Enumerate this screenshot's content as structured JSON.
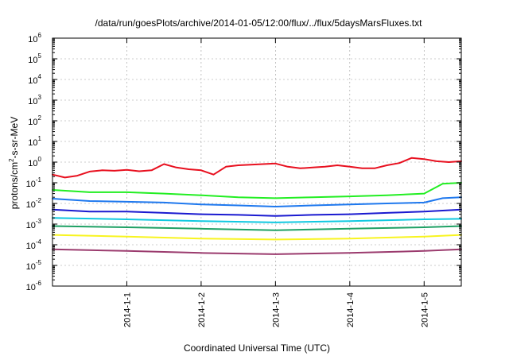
{
  "chart_data": {
    "type": "line",
    "title": "/data/run/goesPlots/archive/2014-01-05/12:00/flux/../flux/5daysMarsFluxes.txt",
    "xlabel": "Coordinated Universal Time (UTC)",
    "ylabel_prefix": "protons/cm",
    "ylabel_exp": "2",
    "ylabel_suffix": "-s-sr-MeV",
    "x_scale": "date",
    "xlim": [
      "2013-12-31T00:00",
      "2014-01-05T12:00"
    ],
    "x_ticks": [
      "2014-1-1",
      "2014-1-2",
      "2014-1-3",
      "2014-1-4",
      "2014-1-5"
    ],
    "y_scale": "log",
    "ylim": [
      1e-06,
      1000000.0
    ],
    "y_tick_base": "10",
    "y_tick_exponents": [
      "-6",
      "-5",
      "-4",
      "-3",
      "-2",
      "-1",
      "0",
      "1",
      "2",
      "3",
      "4",
      "5",
      "6"
    ],
    "grid": true,
    "legend": "none",
    "series": [
      {
        "color": "#e8101f",
        "x": [
          "2013-12-31T00:00",
          "2013-12-31T04:00",
          "2013-12-31T08:00",
          "2013-12-31T12:00",
          "2013-12-31T16:00",
          "2013-12-31T20:00",
          "2014-01-01T00:00",
          "2014-01-01T04:00",
          "2014-01-01T08:00",
          "2014-01-01T12:00",
          "2014-01-01T16:00",
          "2014-01-01T20:00",
          "2014-01-02T00:00",
          "2014-01-02T04:00",
          "2014-01-02T08:00",
          "2014-01-02T12:00",
          "2014-01-02T16:00",
          "2014-01-02T20:00",
          "2014-01-03T00:00",
          "2014-01-03T04:00",
          "2014-01-03T08:00",
          "2014-01-03T12:00",
          "2014-01-03T16:00",
          "2014-01-03T20:00",
          "2014-01-04T00:00",
          "2014-01-04T04:00",
          "2014-01-04T08:00",
          "2014-01-04T12:00",
          "2014-01-04T16:00",
          "2014-01-04T20:00",
          "2014-01-05T00:00",
          "2014-01-05T04:00",
          "2014-01-05T08:00",
          "2014-01-05T12:00"
        ],
        "values": [
          0.25,
          0.18,
          0.22,
          0.35,
          0.4,
          0.38,
          0.42,
          0.36,
          0.4,
          0.8,
          0.55,
          0.45,
          0.4,
          0.25,
          0.6,
          0.7,
          0.75,
          0.8,
          0.85,
          0.6,
          0.5,
          0.55,
          0.6,
          0.7,
          0.6,
          0.5,
          0.5,
          0.7,
          0.9,
          1.6,
          1.4,
          1.1,
          1.0,
          1.1
        ]
      },
      {
        "color": "#22ee22",
        "x": [
          "2013-12-31T00:00",
          "2013-12-31T12:00",
          "2014-01-01T00:00",
          "2014-01-01T12:00",
          "2014-01-02T00:00",
          "2014-01-02T12:00",
          "2014-01-03T00:00",
          "2014-01-03T12:00",
          "2014-01-04T00:00",
          "2014-01-04T12:00",
          "2014-01-05T00:00",
          "2014-01-05T06:00",
          "2014-01-05T12:00"
        ],
        "values": [
          0.045,
          0.035,
          0.035,
          0.03,
          0.025,
          0.02,
          0.018,
          0.02,
          0.022,
          0.025,
          0.03,
          0.09,
          0.1
        ]
      },
      {
        "color": "#1e78ee",
        "x": [
          "2013-12-31T00:00",
          "2013-12-31T12:00",
          "2014-01-01T00:00",
          "2014-01-01T12:00",
          "2014-01-02T00:00",
          "2014-01-02T12:00",
          "2014-01-03T00:00",
          "2014-01-03T12:00",
          "2014-01-04T00:00",
          "2014-01-04T12:00",
          "2014-01-05T00:00",
          "2014-01-05T06:00",
          "2014-01-05T12:00"
        ],
        "values": [
          0.017,
          0.013,
          0.012,
          0.011,
          0.009,
          0.008,
          0.007,
          0.008,
          0.009,
          0.01,
          0.011,
          0.018,
          0.02
        ]
      },
      {
        "color": "#1a1ad0",
        "x": [
          "2013-12-31T00:00",
          "2013-12-31T12:00",
          "2014-01-01T00:00",
          "2014-01-01T12:00",
          "2014-01-02T00:00",
          "2014-01-02T12:00",
          "2014-01-03T00:00",
          "2014-01-03T12:00",
          "2014-01-04T00:00",
          "2014-01-04T12:00",
          "2014-01-05T00:00",
          "2014-01-05T12:00"
        ],
        "values": [
          0.005,
          0.004,
          0.004,
          0.0035,
          0.003,
          0.0028,
          0.0025,
          0.0028,
          0.003,
          0.0035,
          0.004,
          0.005
        ]
      },
      {
        "color": "#10c8e0",
        "x": [
          "2013-12-31T00:00",
          "2014-01-01T00:00",
          "2014-01-02T00:00",
          "2014-01-03T00:00",
          "2014-01-04T00:00",
          "2014-01-05T00:00",
          "2014-01-05T12:00"
        ],
        "values": [
          0.002,
          0.0017,
          0.0014,
          0.0012,
          0.0014,
          0.0017,
          0.0018
        ]
      },
      {
        "color": "#1ea064",
        "x": [
          "2013-12-31T00:00",
          "2014-01-01T00:00",
          "2014-01-02T00:00",
          "2014-01-03T00:00",
          "2014-01-04T00:00",
          "2014-01-05T00:00",
          "2014-01-05T12:00"
        ],
        "values": [
          0.0008,
          0.0007,
          0.0006,
          0.0005,
          0.0006,
          0.0007,
          0.0008
        ]
      },
      {
        "color": "#f8f420",
        "x": [
          "2013-12-31T00:00",
          "2014-01-01T00:00",
          "2014-01-02T00:00",
          "2014-01-03T00:00",
          "2014-01-04T00:00",
          "2014-01-05T00:00",
          "2014-01-05T12:00"
        ],
        "values": [
          0.0003,
          0.00025,
          0.0002,
          0.00018,
          0.0002,
          0.00025,
          0.0003
        ]
      },
      {
        "color": "#9b3b6e",
        "x": [
          "2013-12-31T00:00",
          "2014-01-01T00:00",
          "2014-01-02T00:00",
          "2014-01-03T00:00",
          "2014-01-04T00:00",
          "2014-01-05T00:00",
          "2014-01-05T12:00"
        ],
        "values": [
          6e-05,
          5e-05,
          4e-05,
          3.5e-05,
          4e-05,
          5e-05,
          6e-05
        ]
      }
    ]
  }
}
